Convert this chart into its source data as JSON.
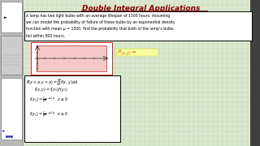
{
  "title": "Double Integral Applications",
  "bg_color": "#dce8d0",
  "grid_color": "#b8ccaa",
  "title_color": "#8b0000",
  "sidebar_color": "#b8b8b8",
  "problem_text_line1": "A lamp has two light bulbs with an average lifespan of 1500 hours. Assuming",
  "problem_text_line2": "we can model the probability of failure of these bulbs by an exponential density",
  "problem_text_line3": "function with mean μ = 1500, find the probability that both of the lamp’s bulbs",
  "problem_text_line4": "fail within 800 hours.",
  "graph_fill": "#f5c8c8",
  "graph_border": "#cc2222",
  "white": "#ffffff",
  "black": "#000000",
  "formula_text_color": "#880000",
  "px_label_color": "#cc6600",
  "yellow_bg": "#ffff99"
}
